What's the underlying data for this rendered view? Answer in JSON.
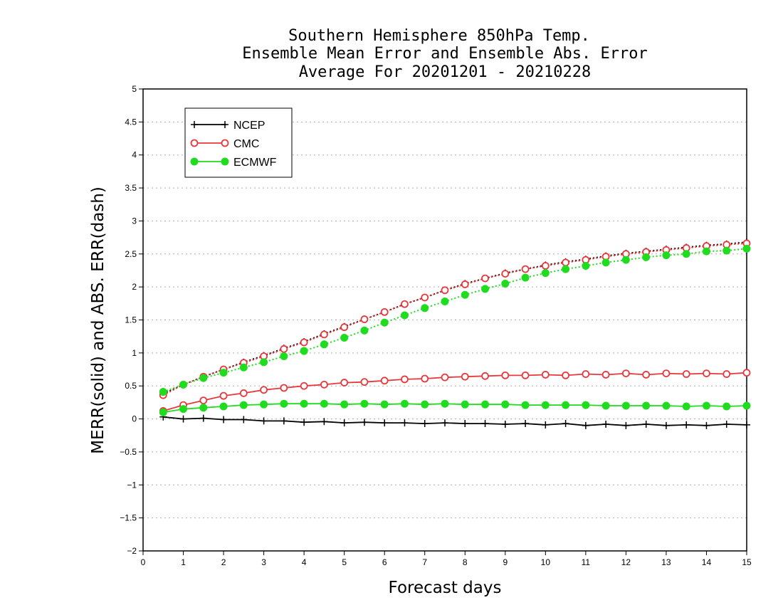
{
  "chart_data": {
    "type": "line",
    "title": [
      "Southern Hemisphere 850hPa Temp.",
      "Ensemble Mean Error and Ensemble Abs. Error",
      "Average For 20201201 - 20210228"
    ],
    "xlabel": "Forecast days",
    "ylabel": "MERR(solid) and ABS. ERR(dash)",
    "xlim": [
      0,
      15
    ],
    "ylim": [
      -2,
      5
    ],
    "x_ticks": [
      "0",
      "1",
      "2",
      "3",
      "4",
      "5",
      "6",
      "7",
      "8",
      "9",
      "10",
      "11",
      "12",
      "13",
      "14",
      "15"
    ],
    "y_ticks": [
      "5",
      "4.5",
      "4",
      "3.5",
      "3",
      "2.5",
      "2",
      "1.5",
      "1",
      "0.5",
      "0",
      "−0.5",
      "−1",
      "−1.5",
      "−2"
    ],
    "grid": "horizontal dotted",
    "legend_position": "top-left",
    "x": [
      0.5,
      1,
      1.5,
      2,
      2.5,
      3,
      3.5,
      4,
      4.5,
      5,
      5.5,
      6,
      6.5,
      7,
      7.5,
      8,
      8.5,
      9,
      9.5,
      10,
      10.5,
      11,
      11.5,
      12,
      12.5,
      13,
      13.5,
      14,
      14.5,
      15
    ],
    "series": [
      {
        "name": "NCEP",
        "color": "#000000",
        "marker": "plus",
        "merr": [
          0.03,
          0.0,
          0.01,
          -0.01,
          -0.01,
          -0.03,
          -0.03,
          -0.05,
          -0.04,
          -0.06,
          -0.05,
          -0.06,
          -0.06,
          -0.07,
          -0.06,
          -0.07,
          -0.07,
          -0.08,
          -0.07,
          -0.09,
          -0.07,
          -0.1,
          -0.08,
          -0.1,
          -0.08,
          -0.1,
          -0.09,
          -0.1,
          -0.08,
          -0.09
        ],
        "abs_err": [
          0.38,
          0.52,
          0.64,
          0.75,
          0.86,
          0.96,
          1.07,
          1.17,
          1.29,
          1.4,
          1.51,
          1.62,
          1.74,
          1.84,
          1.95,
          2.05,
          2.13,
          2.21,
          2.27,
          2.33,
          2.38,
          2.42,
          2.47,
          2.51,
          2.54,
          2.57,
          2.6,
          2.63,
          2.65,
          2.68
        ]
      },
      {
        "name": "CMC",
        "color": "#e8383c",
        "marker": "open-circle",
        "merr": [
          0.12,
          0.21,
          0.28,
          0.35,
          0.39,
          0.44,
          0.47,
          0.5,
          0.52,
          0.55,
          0.56,
          0.58,
          0.6,
          0.61,
          0.63,
          0.64,
          0.65,
          0.66,
          0.66,
          0.67,
          0.66,
          0.68,
          0.67,
          0.69,
          0.67,
          0.69,
          0.68,
          0.69,
          0.68,
          0.7
        ],
        "abs_err": [
          0.36,
          0.52,
          0.64,
          0.75,
          0.85,
          0.95,
          1.06,
          1.16,
          1.28,
          1.39,
          1.51,
          1.62,
          1.74,
          1.84,
          1.95,
          2.04,
          2.13,
          2.2,
          2.27,
          2.32,
          2.37,
          2.41,
          2.46,
          2.5,
          2.53,
          2.56,
          2.59,
          2.62,
          2.64,
          2.66
        ]
      },
      {
        "name": "ECMWF",
        "color": "#1fdc1f",
        "marker": "filled-circle",
        "merr": [
          0.1,
          0.15,
          0.17,
          0.19,
          0.21,
          0.22,
          0.23,
          0.23,
          0.23,
          0.22,
          0.23,
          0.22,
          0.23,
          0.22,
          0.23,
          0.22,
          0.22,
          0.22,
          0.21,
          0.21,
          0.21,
          0.21,
          0.2,
          0.2,
          0.2,
          0.2,
          0.19,
          0.2,
          0.19,
          0.2
        ],
        "abs_err": [
          0.41,
          0.52,
          0.62,
          0.7,
          0.78,
          0.86,
          0.95,
          1.03,
          1.13,
          1.23,
          1.34,
          1.46,
          1.57,
          1.68,
          1.78,
          1.88,
          1.97,
          2.05,
          2.14,
          2.21,
          2.27,
          2.32,
          2.37,
          2.41,
          2.45,
          2.48,
          2.5,
          2.54,
          2.55,
          2.58
        ]
      }
    ]
  }
}
